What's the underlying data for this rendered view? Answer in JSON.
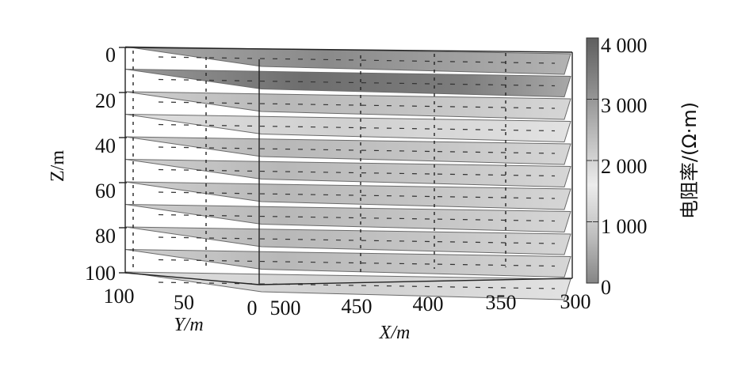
{
  "chart_data": {
    "type": "3d-slice",
    "title": "",
    "zlabel": "Z/m",
    "ylabel": "Y/m",
    "xlabel": "X/m",
    "z_ticks": [
      "0",
      "20",
      "40",
      "60",
      "80",
      "100"
    ],
    "y_ticks": [
      "100",
      "50",
      "0"
    ],
    "x_ticks": [
      "500",
      "450",
      "400",
      "350",
      "300"
    ],
    "zlim": [
      0,
      100
    ],
    "ylim": [
      100,
      0
    ],
    "xlim": [
      500,
      300
    ],
    "slice_depths": [
      0,
      10,
      20,
      30,
      40,
      50,
      60,
      70,
      80,
      90,
      100
    ],
    "colorbar": {
      "label": "电阻率/(Ω·m)",
      "ticks": [
        "0",
        "1 000",
        "2 000",
        "3 000",
        "4 000"
      ],
      "range": [
        0,
        4000
      ],
      "colors": [
        "#858585",
        "#c0c0c0",
        "#ececec",
        "#bcbcbc",
        "#8a8a8a",
        "#5f5f5f"
      ]
    }
  }
}
